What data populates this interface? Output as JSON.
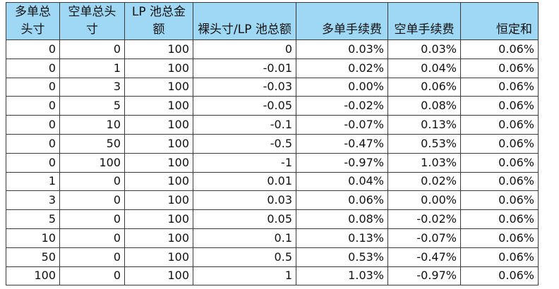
{
  "table": {
    "headers": [
      "多单总头寸",
      "空单总头寸",
      "LP 池总金额",
      "裸头寸/LP 池总额",
      "多单手续费",
      "空单手续费",
      "恒定和"
    ],
    "rows": [
      [
        "0",
        "0",
        "100",
        "0",
        "0.03%",
        "0.03%",
        "0.06%"
      ],
      [
        "0",
        "1",
        "100",
        "-0.01",
        "0.02%",
        "0.04%",
        "0.06%"
      ],
      [
        "0",
        "3",
        "100",
        "-0.03",
        "0.00%",
        "0.06%",
        "0.06%"
      ],
      [
        "0",
        "5",
        "100",
        "-0.05",
        "-0.02%",
        "0.08%",
        "0.06%"
      ],
      [
        "0",
        "10",
        "100",
        "-0.1",
        "-0.07%",
        "0.13%",
        "0.06%"
      ],
      [
        "0",
        "50",
        "100",
        "-0.5",
        "-0.47%",
        "0.53%",
        "0.06%"
      ],
      [
        "0",
        "100",
        "100",
        "-1",
        "-0.97%",
        "1.03%",
        "0.06%"
      ],
      [
        "1",
        "0",
        "100",
        "0.01",
        "0.04%",
        "0.02%",
        "0.06%"
      ],
      [
        "3",
        "0",
        "100",
        "0.03",
        "0.06%",
        "0.00%",
        "0.06%"
      ],
      [
        "5",
        "0",
        "100",
        "0.05",
        "0.08%",
        "-0.02%",
        "0.06%"
      ],
      [
        "10",
        "0",
        "100",
        "0.1",
        "0.13%",
        "-0.07%",
        "0.06%"
      ],
      [
        "50",
        "0",
        "100",
        "0.5",
        "0.53%",
        "-0.47%",
        "0.06%"
      ],
      [
        "100",
        "0",
        "100",
        "1",
        "1.03%",
        "-0.97%",
        "0.06%"
      ]
    ]
  },
  "colors": {
    "header_background": "#9fd8f4",
    "border": "#3a3a3a"
  }
}
